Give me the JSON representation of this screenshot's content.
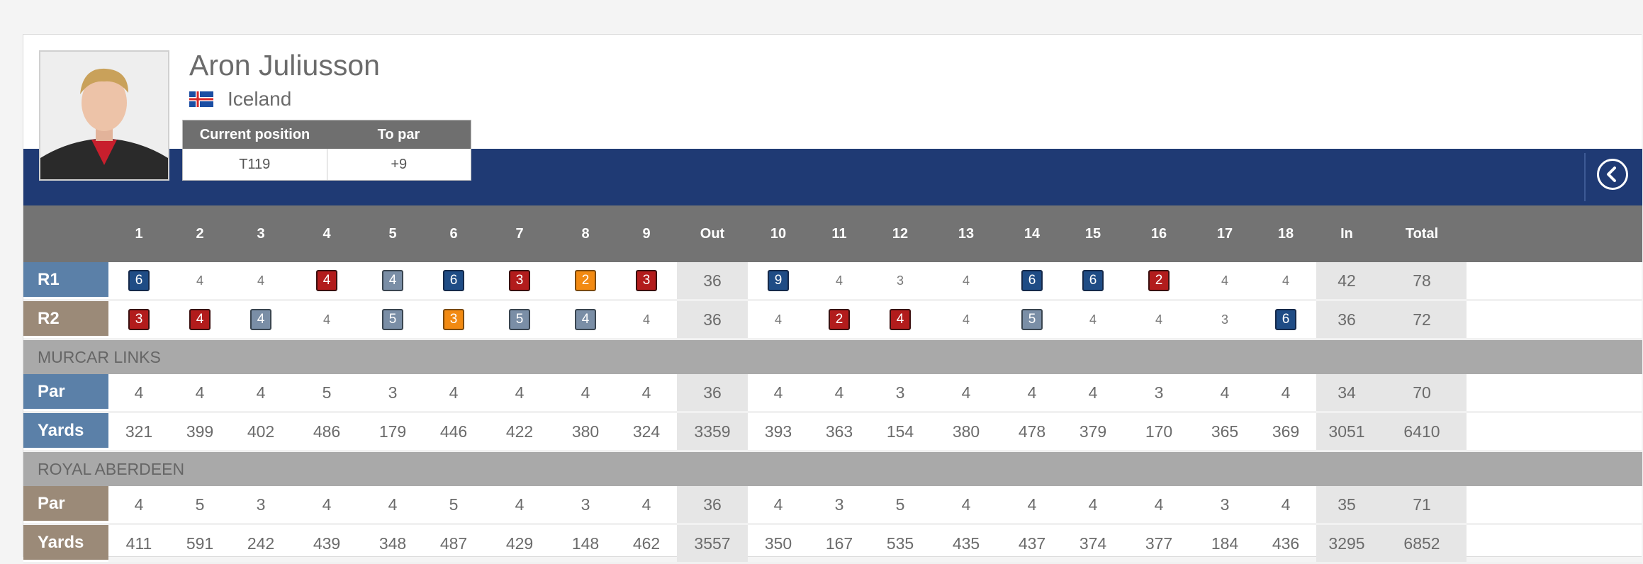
{
  "player": {
    "name": "Aron Juliusson",
    "country": "Iceland",
    "position_label": "Current position",
    "to_par_label": "To par",
    "position": "T119",
    "to_par": "+9"
  },
  "colors": {
    "band": "#1f3a74",
    "eagle_or_better": "#1f4c85",
    "birdie": "#7a8ea6",
    "bogey": "#b21c1c",
    "double_bogey": "#f28a12"
  },
  "icons": {
    "back": "chevron-left-icon",
    "flag": "iceland-flag-icon"
  },
  "header": [
    "",
    "1",
    "2",
    "3",
    "4",
    "5",
    "6",
    "7",
    "8",
    "9",
    "Out",
    "10",
    "11",
    "12",
    "13",
    "14",
    "15",
    "16",
    "17",
    "18",
    "In",
    "Total"
  ],
  "rounds": [
    {
      "label": "R1",
      "holes": [
        {
          "v": "6",
          "c": "dblue"
        },
        {
          "v": "4"
        },
        {
          "v": "4"
        },
        {
          "v": "4",
          "c": "red"
        },
        {
          "v": "4",
          "c": "grey"
        },
        {
          "v": "6",
          "c": "dblue"
        },
        {
          "v": "3",
          "c": "red"
        },
        {
          "v": "2",
          "c": "orange"
        },
        {
          "v": "3",
          "c": "red"
        },
        {
          "v": "36",
          "t": true
        },
        {
          "v": "9",
          "c": "dblue"
        },
        {
          "v": "4"
        },
        {
          "v": "3"
        },
        {
          "v": "4"
        },
        {
          "v": "6",
          "c": "dblue"
        },
        {
          "v": "6",
          "c": "dblue"
        },
        {
          "v": "2",
          "c": "red"
        },
        {
          "v": "4"
        },
        {
          "v": "4"
        },
        {
          "v": "42",
          "t": true
        },
        {
          "v": "78",
          "t": true
        }
      ]
    },
    {
      "label": "R2",
      "holes": [
        {
          "v": "3",
          "c": "red"
        },
        {
          "v": "4",
          "c": "red"
        },
        {
          "v": "4",
          "c": "grey"
        },
        {
          "v": "4"
        },
        {
          "v": "5",
          "c": "grey"
        },
        {
          "v": "3",
          "c": "orange"
        },
        {
          "v": "5",
          "c": "grey"
        },
        {
          "v": "4",
          "c": "grey"
        },
        {
          "v": "4"
        },
        {
          "v": "36",
          "t": true
        },
        {
          "v": "4"
        },
        {
          "v": "2",
          "c": "red"
        },
        {
          "v": "4",
          "c": "red"
        },
        {
          "v": "4"
        },
        {
          "v": "5",
          "c": "grey"
        },
        {
          "v": "4"
        },
        {
          "v": "4"
        },
        {
          "v": "3"
        },
        {
          "v": "6",
          "c": "dblue"
        },
        {
          "v": "36",
          "t": true
        },
        {
          "v": "72",
          "t": true
        }
      ]
    }
  ],
  "courses": [
    {
      "name": "MURCAR LINKS",
      "par": {
        "label": "Par",
        "values": [
          "4",
          "4",
          "4",
          "5",
          "3",
          "4",
          "4",
          "4",
          "4",
          "36",
          "4",
          "4",
          "3",
          "4",
          "4",
          "4",
          "3",
          "4",
          "4",
          "34",
          "70"
        ]
      },
      "yards": {
        "label": "Yards",
        "values": [
          "321",
          "399",
          "402",
          "486",
          "179",
          "446",
          "422",
          "380",
          "324",
          "3359",
          "393",
          "363",
          "154",
          "380",
          "478",
          "379",
          "170",
          "365",
          "369",
          "3051",
          "6410"
        ]
      }
    },
    {
      "name": "ROYAL ABERDEEN",
      "par": {
        "label": "Par",
        "values": [
          "4",
          "5",
          "3",
          "4",
          "4",
          "5",
          "4",
          "3",
          "4",
          "36",
          "4",
          "3",
          "5",
          "4",
          "4",
          "4",
          "4",
          "3",
          "4",
          "35",
          "71"
        ]
      },
      "yards": {
        "label": "Yards",
        "values": [
          "411",
          "591",
          "242",
          "439",
          "348",
          "487",
          "429",
          "148",
          "462",
          "3557",
          "350",
          "167",
          "535",
          "435",
          "437",
          "374",
          "377",
          "184",
          "436",
          "3295",
          "6852"
        ]
      }
    }
  ]
}
